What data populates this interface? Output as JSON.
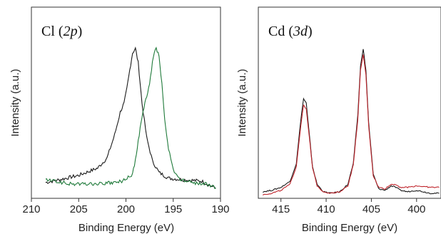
{
  "chart_data": [
    {
      "type": "line",
      "title": "Cl (2p)",
      "title_parts": {
        "prefix": "Cl (",
        "italic": "2p",
        "suffix": ")"
      },
      "xlabel": "Binding Energy (eV)",
      "ylabel": "Intensity (a.u.)",
      "xlim": [
        210,
        190
      ],
      "x_reversed": true,
      "y_tick_labels": false,
      "x_ticks": [
        "210",
        "205",
        "200",
        "195",
        "190"
      ],
      "series": [
        {
          "color": "#1a1a1a",
          "x": [
            208.5,
            207,
            205,
            203,
            202,
            201.2,
            200.6,
            200.2,
            199.9,
            199.6,
            199.3,
            199.0,
            198.7,
            198.3,
            197.8,
            197.2,
            196.5,
            195.5,
            194,
            192,
            190.5
          ],
          "y": [
            0.07,
            0.09,
            0.12,
            0.17,
            0.24,
            0.4,
            0.56,
            0.62,
            0.72,
            0.85,
            0.97,
            1.0,
            0.9,
            0.62,
            0.38,
            0.22,
            0.14,
            0.1,
            0.09,
            0.08,
            0.03
          ]
        },
        {
          "color": "#1f7a3a",
          "x": [
            208.5,
            206,
            203,
            201,
            200,
            199.3,
            198.9,
            198.5,
            198.2,
            198.0,
            197.8,
            197.5,
            197.2,
            197.0,
            196.8,
            196.5,
            196.2,
            195.9,
            195.5,
            195.0,
            194.5,
            193,
            191.5,
            190.5
          ],
          "y": [
            0.09,
            0.06,
            0.06,
            0.07,
            0.09,
            0.13,
            0.26,
            0.45,
            0.55,
            0.62,
            0.66,
            0.75,
            0.9,
            0.97,
            1.0,
            0.95,
            0.75,
            0.5,
            0.3,
            0.16,
            0.1,
            0.07,
            0.06,
            0.03
          ]
        }
      ]
    },
    {
      "type": "line",
      "title": "Cd (3d)",
      "title_parts": {
        "prefix": "Cd (",
        "italic": "3d",
        "suffix": ")"
      },
      "xlabel": "Binding Energy (eV)",
      "ylabel": "Intensity (a.u.)",
      "xlim": [
        417.5,
        397.3
      ],
      "x_reversed": true,
      "y_tick_labels": false,
      "x_ticks": [
        "415",
        "410",
        "405",
        "400"
      ],
      "x_tick_values": [
        415,
        410,
        405,
        400
      ],
      "series": [
        {
          "color": "#1a1a1a",
          "x": [
            417,
            416,
            415,
            414,
            413.3,
            412.8,
            412.5,
            412.2,
            411.9,
            411.5,
            411,
            410.3,
            409.5,
            408.5,
            407.6,
            407.0,
            406.5,
            406.2,
            405.9,
            405.6,
            405.3,
            404.8,
            404.2,
            403.5,
            402.8,
            402.3,
            401.8,
            401,
            400,
            398.5,
            397.5
          ],
          "y": [
            0.03,
            0.04,
            0.06,
            0.1,
            0.22,
            0.52,
            0.66,
            0.63,
            0.44,
            0.2,
            0.08,
            0.03,
            0.02,
            0.03,
            0.08,
            0.22,
            0.55,
            0.88,
            1.0,
            0.85,
            0.5,
            0.15,
            0.05,
            0.04,
            0.07,
            0.06,
            0.04,
            0.03,
            0.04,
            0.02,
            0.02
          ]
        },
        {
          "color": "#c0262d",
          "x": [
            417,
            416,
            415,
            414,
            413.3,
            412.8,
            412.5,
            412.2,
            411.9,
            411.5,
            411,
            410.3,
            409.5,
            408.5,
            407.6,
            407.0,
            406.5,
            406.2,
            405.9,
            405.6,
            405.3,
            404.8,
            404.2,
            403.5,
            402.8,
            402.3,
            401.8,
            401,
            400,
            398.5,
            397.5
          ],
          "y": [
            0.01,
            0.02,
            0.04,
            0.08,
            0.2,
            0.48,
            0.62,
            0.59,
            0.42,
            0.19,
            0.07,
            0.03,
            0.02,
            0.03,
            0.07,
            0.21,
            0.52,
            0.85,
            0.96,
            0.82,
            0.48,
            0.14,
            0.06,
            0.05,
            0.08,
            0.08,
            0.06,
            0.06,
            0.07,
            0.06,
            0.06
          ]
        }
      ]
    }
  ]
}
